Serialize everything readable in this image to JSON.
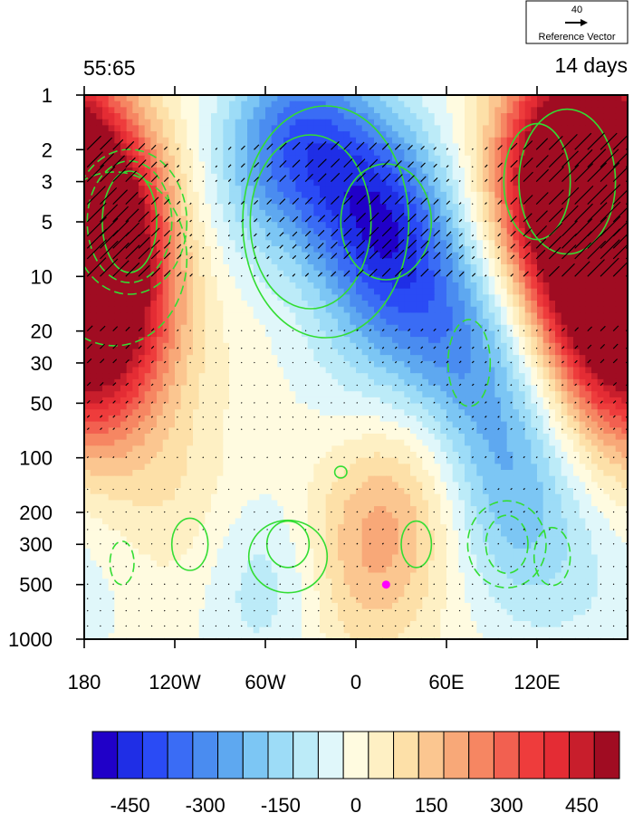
{
  "chart_data": {
    "type": "heatmap",
    "title_left": "55:65",
    "title_right": "14 days",
    "reference_vector": {
      "value": "40",
      "label": "Reference Vector"
    },
    "x_ticks": [
      "180",
      "120W",
      "60W",
      "0",
      "60E",
      "120E"
    ],
    "x_tick_degrees": [
      -180,
      -120,
      -60,
      0,
      60,
      120
    ],
    "xlim": [
      -180,
      180
    ],
    "y_ticks": [
      "1",
      "2",
      "3",
      "5",
      "10",
      "20",
      "30",
      "50",
      "100",
      "200",
      "300",
      "500",
      "1000"
    ],
    "y_tick_values": [
      1,
      2,
      3,
      5,
      10,
      20,
      30,
      50,
      100,
      200,
      300,
      500,
      1000
    ],
    "ylim": [
      1,
      1000
    ],
    "y_scale": "log",
    "y_inverted": true,
    "colorbar": {
      "levels": [
        -525,
        -475,
        -425,
        -375,
        -325,
        -275,
        -225,
        -175,
        -125,
        -75,
        -25,
        25,
        75,
        125,
        175,
        225,
        275,
        325,
        375,
        425,
        475,
        525
      ],
      "tick_labels": [
        "-450",
        "-300",
        "-150",
        "0",
        "150",
        "300",
        "450"
      ],
      "tick_values": [
        -450,
        -300,
        -150,
        0,
        150,
        300,
        450
      ],
      "colors": [
        "#2000c8",
        "#1f2ee6",
        "#2a4bf5",
        "#3a6cf5",
        "#4a8cf0",
        "#5ea8f0",
        "#7cc6f4",
        "#9ddcf7",
        "#bcebf8",
        "#e0f7fa",
        "#fffbe0",
        "#fef0c4",
        "#fde0a8",
        "#fbc690",
        "#f8a878",
        "#f68662",
        "#f26050",
        "#ee3c3c",
        "#e42c34",
        "#c81e2c",
        "#a00c22"
      ]
    },
    "anomaly_centers": [
      {
        "lon": -168,
        "p": 8,
        "value": 360
      },
      {
        "lon": -172,
        "p": 3,
        "value": 330
      },
      {
        "lon": -150,
        "p": 20,
        "value": 160
      },
      {
        "lon": -170,
        "p": 60,
        "value": 80
      },
      {
        "lon": -35,
        "p": 1.5,
        "value": -260
      },
      {
        "lon": -60,
        "p": 3,
        "value": -120
      },
      {
        "lon": 10,
        "p": 4,
        "value": -330
      },
      {
        "lon": 35,
        "p": 10,
        "value": -220
      },
      {
        "lon": 70,
        "p": 25,
        "value": -190
      },
      {
        "lon": 95,
        "p": 80,
        "value": -150
      },
      {
        "lon": 110,
        "p": 250,
        "value": -130
      },
      {
        "lon": 0,
        "p": 30,
        "value": -60
      },
      {
        "lon": 145,
        "p": 1.6,
        "value": 440
      },
      {
        "lon": 135,
        "p": 4,
        "value": 380
      },
      {
        "lon": 160,
        "p": 12,
        "value": 360
      },
      {
        "lon": 175,
        "p": 30,
        "value": 200
      },
      {
        "lon": -120,
        "p": 200,
        "value": 70
      },
      {
        "lon": 10,
        "p": 300,
        "value": 160
      },
      {
        "lon": 40,
        "p": 120,
        "value": 80
      },
      {
        "lon": -160,
        "p": 400,
        "value": -30
      },
      {
        "lon": -60,
        "p": 500,
        "value": -110
      },
      {
        "lon": 150,
        "p": 600,
        "value": -40
      },
      {
        "lon": 0,
        "p": 900,
        "value": 30
      }
    ],
    "marker": {
      "lon": 20,
      "p": 500,
      "color": "#ff00ff"
    },
    "colors": {
      "contour_line": "#33dd33",
      "vector": "#000000"
    },
    "grid": false
  }
}
